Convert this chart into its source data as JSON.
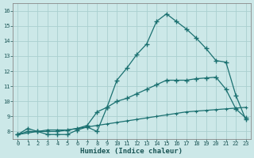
{
  "xlabel": "Humidex (Indice chaleur)",
  "xlim": [
    -0.5,
    23.5
  ],
  "ylim": [
    7.5,
    16.5
  ],
  "yticks": [
    8,
    9,
    10,
    11,
    12,
    13,
    14,
    15,
    16
  ],
  "xticks": [
    0,
    1,
    2,
    3,
    4,
    5,
    6,
    7,
    8,
    9,
    10,
    11,
    12,
    13,
    14,
    15,
    16,
    17,
    18,
    19,
    20,
    21,
    22,
    23
  ],
  "bg_color": "#cce8e8",
  "grid_color": "#aad0d0",
  "line_color": "#1a7070",
  "line1_y": [
    7.8,
    8.2,
    8.0,
    7.8,
    7.8,
    7.8,
    8.1,
    8.3,
    8.0,
    9.6,
    11.4,
    12.2,
    13.1,
    13.8,
    15.3,
    15.8,
    15.3,
    14.8,
    14.2,
    13.5,
    12.7,
    12.6,
    10.4,
    8.8
  ],
  "line2_y": [
    7.8,
    8.0,
    8.0,
    8.0,
    8.0,
    8.1,
    8.2,
    8.4,
    9.3,
    9.6,
    10.0,
    10.2,
    10.5,
    10.8,
    11.1,
    11.4,
    11.4,
    11.4,
    11.5,
    11.55,
    11.6,
    10.8,
    9.5,
    8.9
  ],
  "line3_y": [
    7.8,
    7.9,
    8.0,
    8.1,
    8.1,
    8.1,
    8.2,
    8.3,
    8.4,
    8.5,
    8.6,
    8.7,
    8.8,
    8.9,
    9.0,
    9.1,
    9.2,
    9.3,
    9.35,
    9.4,
    9.45,
    9.5,
    9.55,
    9.6
  ],
  "tick_fontsize": 5,
  "xlabel_fontsize": 6.5,
  "marker": "+"
}
